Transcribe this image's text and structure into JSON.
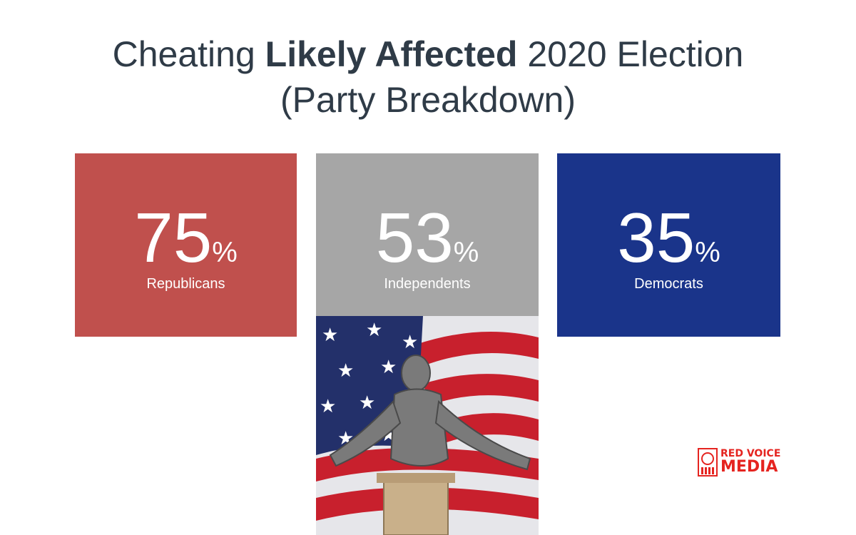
{
  "title": {
    "line1_pre": "Cheating ",
    "line1_bold": "Likely Affected",
    "line1_post": " 2020 Election",
    "line2": "(Party Breakdown)"
  },
  "colors": {
    "republicans": "#c0504d",
    "independents": "#a6a6a6",
    "democrats": "#1a348a",
    "logo_red": "#e52420"
  },
  "chart_data": {
    "type": "bar",
    "title": "Cheating Likely Affected 2020 Election (Party Breakdown)",
    "categories": [
      "Republicans",
      "Independents",
      "Democrats"
    ],
    "values": [
      75,
      53,
      35
    ],
    "unit": "%"
  },
  "logo": {
    "line1": "RED VOICE",
    "line2": "MEDIA"
  }
}
